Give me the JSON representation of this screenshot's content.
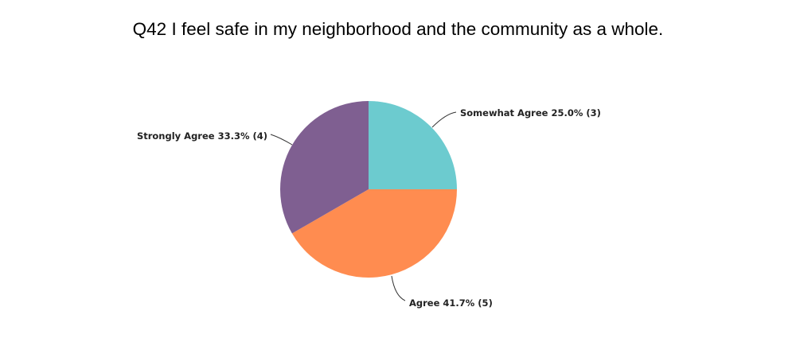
{
  "chart_data": {
    "type": "pie",
    "title": "Q42 I feel safe in my neighborhood and the community as a whole.",
    "slices": [
      {
        "label": "Somewhat Agree",
        "percent": "25.0%",
        "count": "(3)",
        "value": 3,
        "color": "#6CCBCF"
      },
      {
        "label": "Agree",
        "percent": "41.7%",
        "count": "(5)",
        "value": 5,
        "color": "#FF8C50"
      },
      {
        "label": "Strongly Agree",
        "percent": "33.3%",
        "count": "(4)",
        "value": 4,
        "color": "#7F5F91"
      }
    ],
    "legend": "none"
  }
}
